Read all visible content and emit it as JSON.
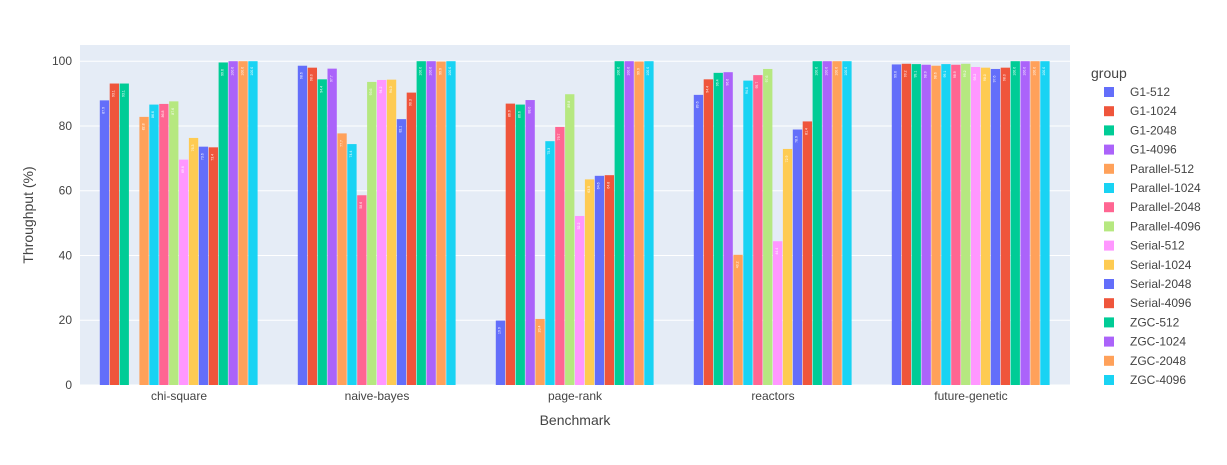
{
  "chart_data": {
    "type": "bar",
    "xlabel": "Benchmark",
    "ylabel": "Throughput (%)",
    "ylim": [
      0,
      105
    ],
    "yticks": [
      0,
      20,
      40,
      60,
      80,
      100
    ],
    "grid": true,
    "legend_title": "group",
    "legend_position": "right",
    "categories": [
      "chi-square",
      "naive-bayes",
      "page-rank",
      "reactors",
      "future-genetic"
    ],
    "series": [
      {
        "name": "G1-512",
        "color": "#636efa",
        "values": [
          87.9,
          98.6,
          19.9,
          89.6,
          99.0
        ]
      },
      {
        "name": "G1-1024",
        "color": "#ef553b",
        "values": [
          93.1,
          98.0,
          86.9,
          94.4,
          99.2
        ]
      },
      {
        "name": "G1-2048",
        "color": "#00cc96",
        "values": [
          93.1,
          94.4,
          86.6,
          96.4,
          99.1
        ]
      },
      {
        "name": "G1-4096",
        "color": "#ab63fa",
        "values": [
          null,
          97.7,
          88.0,
          96.6,
          98.9
        ]
      },
      {
        "name": "Parallel-512",
        "color": "#ffa15a",
        "values": [
          82.8,
          77.7,
          20.4,
          40.2,
          98.6
        ]
      },
      {
        "name": "Parallel-1024",
        "color": "#19d3f3",
        "values": [
          86.6,
          74.4,
          75.3,
          94.0,
          99.1
        ]
      },
      {
        "name": "Parallel-2048",
        "color": "#ff6692",
        "values": [
          86.8,
          58.6,
          79.7,
          95.7,
          98.9
        ]
      },
      {
        "name": "Parallel-4096",
        "color": "#b6e880",
        "values": [
          87.6,
          93.6,
          89.8,
          97.6,
          99.2
        ]
      },
      {
        "name": "Serial-512",
        "color": "#ff97ff",
        "values": [
          69.6,
          94.2,
          52.2,
          44.4,
          98.2
        ]
      },
      {
        "name": "Serial-1024",
        "color": "#fecb52",
        "values": [
          76.3,
          94.3,
          63.5,
          72.9,
          98.0
        ]
      },
      {
        "name": "Serial-2048",
        "color": "#636efa",
        "values": [
          73.6,
          82.1,
          64.6,
          78.9,
          97.6
        ]
      },
      {
        "name": "Serial-4096",
        "color": "#ef553b",
        "values": [
          73.4,
          90.3,
          64.8,
          81.4,
          98.0
        ]
      },
      {
        "name": "ZGC-512",
        "color": "#00cc96",
        "values": [
          99.6,
          100.0,
          100.0,
          100.0,
          100.0
        ]
      },
      {
        "name": "ZGC-1024",
        "color": "#ab63fa",
        "values": [
          100.0,
          100.0,
          100.0,
          100.0,
          100.0
        ]
      },
      {
        "name": "ZGC-2048",
        "color": "#ffa15a",
        "values": [
          100.0,
          99.9,
          99.9,
          100.0,
          100.0
        ]
      },
      {
        "name": "ZGC-4096",
        "color": "#19d3f3",
        "values": [
          100.0,
          100.0,
          100.0,
          100.0,
          100.0
        ]
      }
    ]
  }
}
